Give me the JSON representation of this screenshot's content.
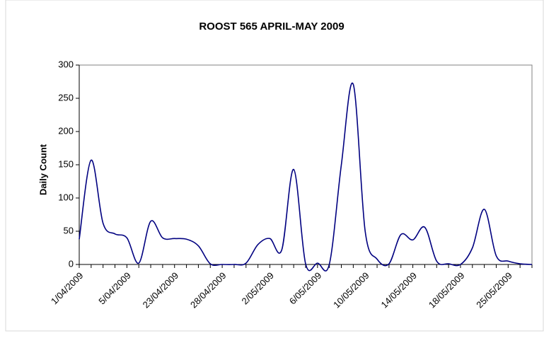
{
  "chart_data": {
    "type": "line",
    "title": "ROOST 565  APRIL-MAY 2009",
    "y_label": "Daily Count",
    "categories": [
      "1/04/2009",
      null,
      null,
      null,
      "5/04/2009",
      null,
      null,
      null,
      "23/04/2009",
      null,
      null,
      null,
      "28/04/2009",
      null,
      null,
      null,
      "2/05/2009",
      null,
      null,
      null,
      "6/05/2009",
      null,
      null,
      null,
      "10/05/2009",
      null,
      null,
      null,
      "14/05/2009",
      null,
      null,
      null,
      "18/05/2009",
      null,
      null,
      null,
      "25/05/2009",
      null,
      null
    ],
    "series": [
      {
        "name": "Daily Count",
        "color": "#000080",
        "values": [
          38,
          157,
          62,
          46,
          40,
          2,
          65,
          40,
          39,
          38,
          28,
          1,
          0,
          0,
          2,
          30,
          39,
          22,
          143,
          1,
          2,
          1,
          150,
          271,
          50,
          8,
          1,
          45,
          37,
          56,
          5,
          1,
          0,
          25,
          83,
          13,
          5,
          1,
          0
        ]
      }
    ],
    "ylim": [
      0,
      300
    ],
    "yticks": [
      0,
      50,
      100,
      150,
      200,
      250,
      300
    ]
  }
}
